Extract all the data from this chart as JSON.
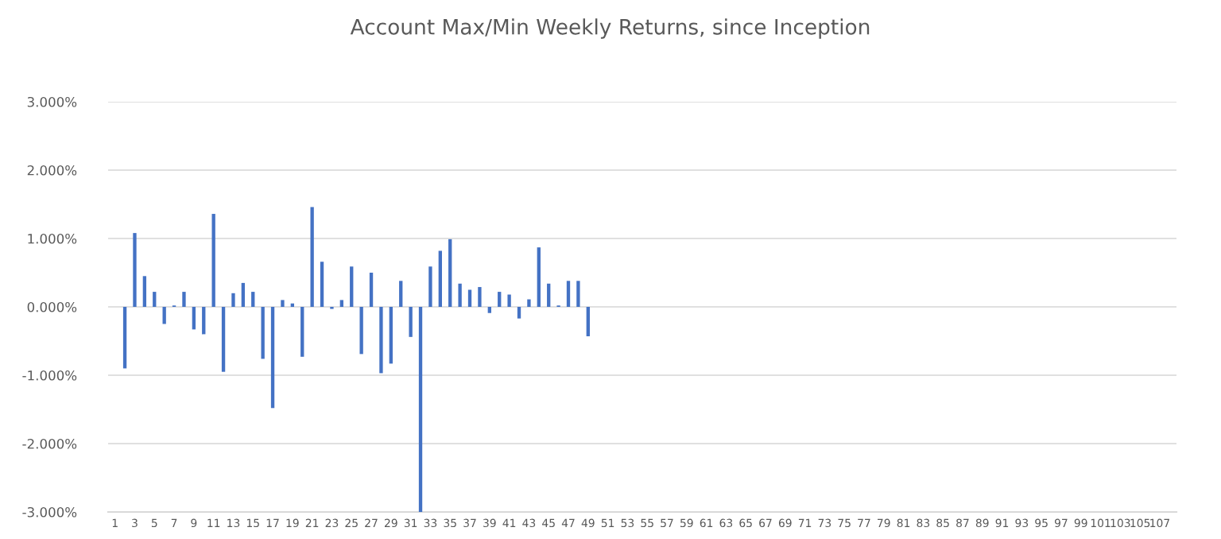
{
  "chart_data": {
    "type": "bar",
    "title": "Account Max/Min Weekly Returns, since Inception",
    "categories": [
      "1",
      null,
      "3",
      null,
      "5",
      null,
      "7",
      null,
      "9",
      null,
      "11",
      null,
      "13",
      null,
      "15",
      null,
      "17",
      null,
      "19",
      null,
      "21",
      null,
      "23",
      null,
      "25",
      null,
      "27",
      null,
      "29",
      null,
      "31",
      null,
      "33",
      null,
      "35",
      null,
      "37",
      null,
      "39",
      null,
      "41",
      null,
      "43",
      null,
      "45",
      null,
      "47",
      null,
      "49",
      null,
      "51",
      null,
      "53",
      null,
      "55",
      null,
      "57",
      null,
      "59",
      null,
      "61",
      null,
      "63",
      null,
      "65",
      null,
      "67",
      null,
      "69",
      null,
      "71",
      null,
      "73",
      null,
      "75",
      null,
      "77",
      null,
      "79",
      null,
      "81",
      null,
      "83",
      null,
      "85",
      null,
      "87",
      null,
      "89",
      null,
      "91",
      null,
      "93",
      null,
      "95",
      null,
      "97",
      null,
      "99",
      null,
      "101",
      null,
      "103",
      null,
      "105",
      null,
      "107",
      null
    ],
    "values": [
      null,
      -0.9,
      1.08,
      0.45,
      0.22,
      -0.25,
      0.02,
      0.22,
      -0.33,
      -0.4,
      1.36,
      -0.95,
      0.2,
      0.35,
      0.22,
      -0.76,
      -1.48,
      0.1,
      0.05,
      -0.73,
      1.46,
      0.66,
      -0.03,
      0.1,
      0.59,
      -0.69,
      0.5,
      -0.97,
      -0.83,
      0.38,
      -0.44,
      -3.0,
      0.59,
      0.82,
      0.99,
      0.34,
      0.25,
      0.29,
      -0.09,
      0.22,
      0.18,
      -0.17,
      0.11,
      0.87,
      0.34,
      0.02,
      0.38,
      0.38,
      -0.43,
      null,
      null,
      null,
      null,
      null,
      null,
      null,
      null,
      null,
      null,
      null,
      null,
      null,
      null,
      null,
      null,
      null,
      null,
      null,
      null,
      null,
      null,
      null,
      null,
      null,
      null,
      null,
      null,
      null,
      null,
      null,
      null,
      null,
      null,
      null,
      null,
      null,
      null,
      null,
      null,
      null,
      null,
      null,
      null,
      null,
      null,
      null,
      null,
      null,
      null,
      null,
      null,
      null,
      null,
      null,
      null,
      null,
      null,
      null
    ],
    "color": "#4472c4",
    "ylim": [
      -3,
      3
    ],
    "yticks": [
      {
        "value": -3,
        "label": "-3.000%"
      },
      {
        "value": -2,
        "label": "-2.000%"
      },
      {
        "value": -1,
        "label": "-1.000%"
      },
      {
        "value": 0,
        "label": "0.000%"
      },
      {
        "value": 1,
        "label": "1.000%"
      },
      {
        "value": 2,
        "label": "2.000%"
      },
      {
        "value": 3,
        "label": "3.000%"
      }
    ],
    "grid": "y"
  }
}
